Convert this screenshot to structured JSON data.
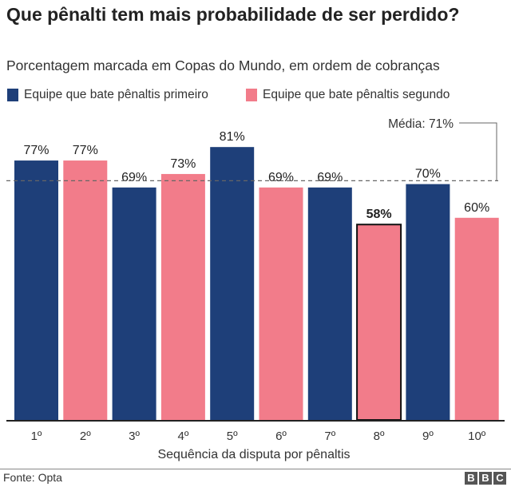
{
  "header": {
    "title": "Que pênalti tem mais probabilidade de ser perdido?",
    "subtitle": "Porcentagem marcada em Copas do Mundo, em ordem de cobranças"
  },
  "legend": [
    {
      "label": "Equipe que bate pênaltis primeiro",
      "color": "#1e3f79"
    },
    {
      "label": "Equipe que bate pênaltis segundo",
      "color": "#f27c8a"
    }
  ],
  "chart_data": {
    "type": "bar",
    "title": "Que pênalti tem mais probabilidade de ser perdido?",
    "subtitle": "Porcentagem marcada em Copas do Mundo, em ordem de cobranças",
    "categories": [
      "1º",
      "2º",
      "3º",
      "4º",
      "5º",
      "6º",
      "7º",
      "8º",
      "9º",
      "10º"
    ],
    "values": [
      77,
      77,
      69,
      73,
      81,
      69,
      69,
      58,
      70,
      60
    ],
    "data_labels": [
      "77%",
      "77%",
      "69%",
      "73%",
      "81%",
      "69%",
      "69%",
      "58%",
      "70%",
      "60%"
    ],
    "team": [
      "primeiro",
      "segundo",
      "primeiro",
      "segundo",
      "primeiro",
      "segundo",
      "primeiro",
      "segundo",
      "primeiro",
      "segundo"
    ],
    "highlighted": "8º",
    "xlabel": "Sequência da disputa por pênaltis",
    "ylabel": "",
    "ylim": [
      0,
      100
    ],
    "grid": false,
    "legend_position": "top-left",
    "reference_line": {
      "value": 71,
      "label": "Média: 71%"
    },
    "colors": {
      "primeiro": "#1e3f79",
      "segundo": "#f27c8a"
    }
  },
  "footer": {
    "source": "Fonte: Opta",
    "logo": "BBC"
  }
}
